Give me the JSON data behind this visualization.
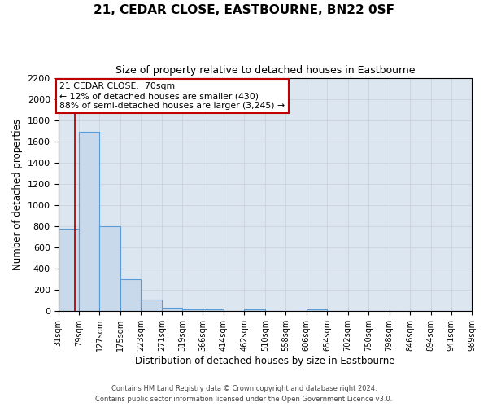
{
  "title": "21, CEDAR CLOSE, EASTBOURNE, BN22 0SF",
  "subtitle": "Size of property relative to detached houses in Eastbourne",
  "xlabel": "Distribution of detached houses by size in Eastbourne",
  "ylabel": "Number of detached properties",
  "bar_values": [
    780,
    1690,
    800,
    300,
    110,
    35,
    20,
    20,
    0,
    20,
    0,
    0,
    20,
    0,
    0,
    0,
    0,
    0,
    0,
    0
  ],
  "bin_edges": [
    31,
    79,
    127,
    175,
    223,
    271,
    319,
    366,
    414,
    462,
    510,
    558,
    606,
    654,
    702,
    750,
    798,
    846,
    894,
    941,
    989
  ],
  "tick_labels": [
    "31sqm",
    "79sqm",
    "127sqm",
    "175sqm",
    "223sqm",
    "271sqm",
    "319sqm",
    "366sqm",
    "414sqm",
    "462sqm",
    "510sqm",
    "558sqm",
    "606sqm",
    "654sqm",
    "702sqm",
    "750sqm",
    "798sqm",
    "846sqm",
    "894sqm",
    "941sqm",
    "989sqm"
  ],
  "bar_color": "#c9d9ec",
  "bar_edge_color": "#5b9bd5",
  "grid_color": "#c8cfd8",
  "background_color": "#dce6f1",
  "property_line_x": 70,
  "property_line_color": "#c00000",
  "annotation_line1": "21 CEDAR CLOSE:  70sqm",
  "annotation_line2": "← 12% of detached houses are smaller (430)",
  "annotation_line3": "88% of semi-detached houses are larger (3,245) →",
  "annotation_box_color": "#ffffff",
  "annotation_box_edge_color": "#c00000",
  "ylim": [
    0,
    2200
  ],
  "yticks": [
    0,
    200,
    400,
    600,
    800,
    1000,
    1200,
    1400,
    1600,
    1800,
    2000,
    2200
  ],
  "footer_line1": "Contains HM Land Registry data © Crown copyright and database right 2024.",
  "footer_line2": "Contains public sector information licensed under the Open Government Licence v3.0.",
  "figsize": [
    6.0,
    5.0
  ],
  "dpi": 100
}
